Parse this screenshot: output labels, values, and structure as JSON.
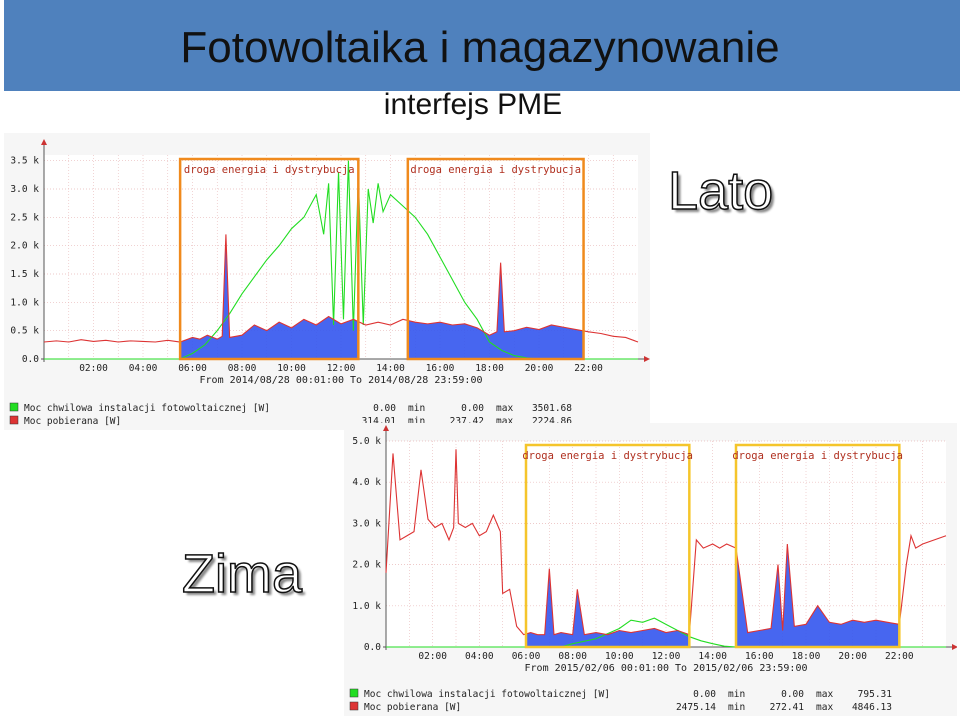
{
  "header": {
    "title": "Fotowoltaika i magazynowanie",
    "subtitle": "interfejs PME"
  },
  "labels": {
    "summer": "Lato",
    "winter": "Zima"
  },
  "colors": {
    "title_band": "#4f81bd",
    "pv_series": "#22dd22",
    "load_series": "#dd3333",
    "load_fill": "#3355ee",
    "summer_box": "#f08a1d",
    "winter_box": "#f5c52b",
    "grid": "#e8b8b8"
  },
  "chart_data": [
    {
      "type": "line",
      "chart_id": "lato",
      "legend_placement": "bottom",
      "period": "From 2014/08/28 00:01:00 To 2014/08/28 23:59:00",
      "y_ticks": [
        "0.0",
        "0.5 k",
        "1.0 k",
        "1.5 k",
        "2.0 k",
        "2.5 k",
        "3.0 k",
        "3.5 k"
      ],
      "ylim": [
        0,
        3600
      ],
      "x_ticks": [
        "02:00",
        "04:00",
        "06:00",
        "08:00",
        "10:00",
        "12:00",
        "14:00",
        "16:00",
        "18:00",
        "20:00",
        "22:00"
      ],
      "xlim": [
        0,
        24
      ],
      "annotations": [
        {
          "label": "droga energia i dystrybucja",
          "x_range": [
            5.5,
            12.7
          ]
        },
        {
          "label": "droga energia i dystrybucja",
          "x_range": [
            14.7,
            21.8
          ]
        }
      ],
      "series": [
        {
          "name": "Moc chwilowa instalacji fotowoltaicznej [W]",
          "stats": {
            "current": "0.00",
            "min": "0.00",
            "max": "3501.68"
          },
          "x": [
            0,
            5.5,
            6.0,
            6.5,
            7.0,
            7.5,
            8.0,
            8.5,
            9.0,
            9.5,
            10.0,
            10.5,
            11.0,
            11.3,
            11.5,
            11.7,
            11.9,
            12.1,
            12.3,
            12.5,
            12.7,
            12.9,
            13.1,
            13.3,
            13.5,
            13.7,
            14.0,
            14.5,
            15.0,
            15.5,
            16.0,
            16.5,
            17.0,
            17.5,
            18.0,
            18.5,
            19.0,
            19.5,
            20,
            24
          ],
          "y": [
            0,
            0,
            100,
            250,
            500,
            800,
            1150,
            1450,
            1750,
            2000,
            2300,
            2500,
            2900,
            2200,
            3100,
            600,
            3300,
            700,
            3500,
            500,
            3200,
            600,
            3000,
            2400,
            3100,
            2600,
            2900,
            2700,
            2500,
            2200,
            1800,
            1400,
            1000,
            700,
            300,
            150,
            60,
            20,
            0,
            0
          ]
        },
        {
          "name": "Moc pobierana [W]",
          "stats": {
            "current": "314.01",
            "min": "237.42",
            "max": "2224.86"
          },
          "x": [
            0,
            0.5,
            1.0,
            1.5,
            2.0,
            2.5,
            3.0,
            3.5,
            4.0,
            4.5,
            5.0,
            5.5,
            6.0,
            6.3,
            6.6,
            7.0,
            7.2,
            7.35,
            7.5,
            8.0,
            8.5,
            9.0,
            9.5,
            10.0,
            10.5,
            11.0,
            11.5,
            12.0,
            12.5,
            13.0,
            13.5,
            14.0,
            14.5,
            15.0,
            15.5,
            16.0,
            16.5,
            17.0,
            17.5,
            18.0,
            18.3,
            18.45,
            18.6,
            19.0,
            19.5,
            20.0,
            20.5,
            21.0,
            21.5,
            22.0,
            22.5,
            23.0,
            23.5,
            24
          ],
          "y": [
            300,
            320,
            300,
            340,
            310,
            330,
            300,
            320,
            310,
            300,
            330,
            300,
            380,
            350,
            420,
            350,
            400,
            2200,
            380,
            420,
            600,
            500,
            650,
            550,
            700,
            600,
            750,
            620,
            700,
            600,
            650,
            600,
            700,
            650,
            620,
            650,
            600,
            620,
            550,
            420,
            480,
            1700,
            480,
            500,
            560,
            520,
            600,
            560,
            520,
            480,
            450,
            400,
            380,
            300
          ]
        }
      ]
    },
    {
      "type": "line",
      "chart_id": "zima",
      "legend_placement": "bottom",
      "period": "From 2015/02/06 00:01:00 To 2015/02/06 23:59:00",
      "y_ticks": [
        "0.0",
        "1.0 k",
        "2.0 k",
        "3.0 k",
        "4.0 k",
        "5.0 k"
      ],
      "ylim": [
        0,
        5000
      ],
      "x_ticks": [
        "02:00",
        "04:00",
        "06:00",
        "08:00",
        "10:00",
        "12:00",
        "14:00",
        "16:00",
        "18:00",
        "20:00",
        "22:00"
      ],
      "xlim": [
        0,
        24
      ],
      "annotations": [
        {
          "label": "droga energia i dystrybucja",
          "x_range": [
            6.0,
            13.0
          ]
        },
        {
          "label": "droga energia i dystrybucja",
          "x_range": [
            15.0,
            22.0
          ]
        }
      ],
      "series": [
        {
          "name": "Moc chwilowa instalacji fotowoltaicznej [W]",
          "stats": {
            "current": "0.00",
            "min": "0.00",
            "max": "795.31"
          },
          "x": [
            0,
            7.5,
            8.0,
            9.0,
            10.0,
            10.5,
            11.0,
            11.5,
            12.0,
            12.5,
            13.0,
            13.5,
            14.0,
            14.5,
            15.0,
            24
          ],
          "y": [
            0,
            0,
            80,
            200,
            450,
            650,
            600,
            700,
            550,
            400,
            250,
            150,
            80,
            20,
            0,
            0
          ]
        },
        {
          "name": "Moc pobierana [W]",
          "stats": {
            "current": "2475.14",
            "min": "272.41",
            "max": "4846.13"
          },
          "x": [
            0,
            0.3,
            0.6,
            0.9,
            1.2,
            1.5,
            1.8,
            2.1,
            2.4,
            2.7,
            2.9,
            3.0,
            3.1,
            3.4,
            3.7,
            4.0,
            4.3,
            4.6,
            4.9,
            5.0,
            5.3,
            5.6,
            5.9,
            6.2,
            6.5,
            6.8,
            7.0,
            7.2,
            7.5,
            8.0,
            8.2,
            8.5,
            9.0,
            9.5,
            10.0,
            10.5,
            11.0,
            11.5,
            12.0,
            12.5,
            13.0,
            13.3,
            13.6,
            14.0,
            14.3,
            14.6,
            15.0,
            15.5,
            16.0,
            16.5,
            16.8,
            17.0,
            17.2,
            17.5,
            18.0,
            18.5,
            19.0,
            19.5,
            20.0,
            20.5,
            21.0,
            21.5,
            22.0,
            22.3,
            22.5,
            22.7,
            23.0,
            23.5,
            24
          ],
          "y": [
            1800,
            4700,
            2600,
            2700,
            2800,
            4300,
            3100,
            2900,
            3000,
            2600,
            2900,
            4800,
            3000,
            2900,
            3000,
            2700,
            2800,
            3200,
            2800,
            1300,
            1400,
            500,
            300,
            350,
            300,
            300,
            1900,
            300,
            350,
            300,
            1400,
            300,
            350,
            300,
            400,
            350,
            400,
            450,
            350,
            400,
            300,
            2600,
            2400,
            2500,
            2400,
            2500,
            2400,
            350,
            400,
            450,
            2000,
            400,
            2500,
            500,
            550,
            1000,
            600,
            550,
            650,
            600,
            650,
            600,
            550,
            2000,
            2700,
            2400,
            2500,
            2600,
            2700
          ]
        }
      ]
    }
  ]
}
